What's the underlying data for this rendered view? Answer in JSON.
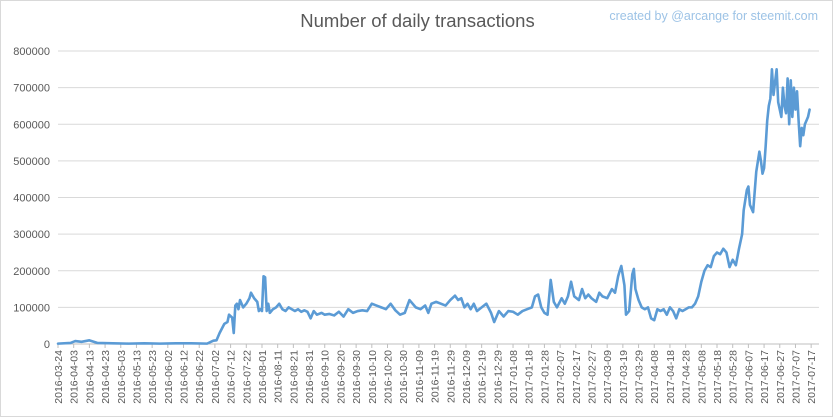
{
  "watermark": "created by @arcange for steemit.com",
  "chart_data": {
    "type": "line",
    "title": "Number of daily transactions",
    "xlabel": "",
    "ylabel": "",
    "x_start": "2016-03-24",
    "x_end": "2017-07-22",
    "x_tick_step_days": 10,
    "ylim": [
      0,
      800000
    ],
    "ytick_step": 100000,
    "y_tick_labels": [
      "0",
      "100000",
      "200000",
      "300000",
      "400000",
      "500000",
      "600000",
      "700000",
      "800000"
    ],
    "x_tick_labels": [
      "2016-03-24",
      "2016-04-03",
      "2016-04-13",
      "2016-04-23",
      "2016-05-03",
      "2016-05-13",
      "2016-05-23",
      "2016-06-02",
      "2016-06-12",
      "2016-06-22",
      "2016-07-02",
      "2016-07-12",
      "2016-07-22",
      "2016-08-01",
      "2016-08-11",
      "2016-08-21",
      "2016-08-31",
      "2016-09-10",
      "2016-09-20",
      "2016-09-30",
      "2016-10-10",
      "2016-10-20",
      "2016-10-30",
      "2016-11-09",
      "2016-11-19",
      "2016-11-29",
      "2016-12-09",
      "2016-12-19",
      "2016-12-29",
      "2017-01-08",
      "2017-01-18",
      "2017-01-28",
      "2017-02-07",
      "2017-02-17",
      "2017-02-27",
      "2017-03-09",
      "2017-03-19",
      "2017-03-29",
      "2017-04-08",
      "2017-04-18",
      "2017-04-28",
      "2017-05-08",
      "2017-05-18",
      "2017-05-28",
      "2017-06-07",
      "2017-06-17",
      "2017-06-27",
      "2017-07-07",
      "2017-07-17"
    ],
    "grid": "horizontal",
    "legend": "none",
    "line_color": "#5b9bd5",
    "series": [
      {
        "points": [
          [
            "2016-03-24",
            1000
          ],
          [
            "2016-04-01",
            3000
          ],
          [
            "2016-04-04",
            8000
          ],
          [
            "2016-04-08",
            6000
          ],
          [
            "2016-04-13",
            10000
          ],
          [
            "2016-04-18",
            3000
          ],
          [
            "2016-04-28",
            2000
          ],
          [
            "2016-05-08",
            1000
          ],
          [
            "2016-05-18",
            2000
          ],
          [
            "2016-05-28",
            1000
          ],
          [
            "2016-06-07",
            2000
          ],
          [
            "2016-06-17",
            2000
          ],
          [
            "2016-06-27",
            1000
          ],
          [
            "2016-07-01",
            9000
          ],
          [
            "2016-07-03",
            10000
          ],
          [
            "2016-07-05",
            30000
          ],
          [
            "2016-07-08",
            55000
          ],
          [
            "2016-07-10",
            60000
          ],
          [
            "2016-07-11",
            80000
          ],
          [
            "2016-07-13",
            72000
          ],
          [
            "2016-07-14",
            30000
          ],
          [
            "2016-07-15",
            105000
          ],
          [
            "2016-07-16",
            110000
          ],
          [
            "2016-07-17",
            95000
          ],
          [
            "2016-07-18",
            120000
          ],
          [
            "2016-07-20",
            100000
          ],
          [
            "2016-07-22",
            110000
          ],
          [
            "2016-07-24",
            125000
          ],
          [
            "2016-07-25",
            140000
          ],
          [
            "2016-07-27",
            125000
          ],
          [
            "2016-07-29",
            115000
          ],
          [
            "2016-07-30",
            90000
          ],
          [
            "2016-07-31",
            95000
          ],
          [
            "2016-08-01",
            90000
          ],
          [
            "2016-08-02",
            185000
          ],
          [
            "2016-08-03",
            182000
          ],
          [
            "2016-08-04",
            90000
          ],
          [
            "2016-08-05",
            110000
          ],
          [
            "2016-08-06",
            85000
          ],
          [
            "2016-08-08",
            95000
          ],
          [
            "2016-08-10",
            100000
          ],
          [
            "2016-08-12",
            110000
          ],
          [
            "2016-08-14",
            95000
          ],
          [
            "2016-08-16",
            90000
          ],
          [
            "2016-08-18",
            100000
          ],
          [
            "2016-08-20",
            95000
          ],
          [
            "2016-08-22",
            90000
          ],
          [
            "2016-08-24",
            95000
          ],
          [
            "2016-08-26",
            88000
          ],
          [
            "2016-08-28",
            92000
          ],
          [
            "2016-08-30",
            88000
          ],
          [
            "2016-09-01",
            70000
          ],
          [
            "2016-09-03",
            90000
          ],
          [
            "2016-09-05",
            80000
          ],
          [
            "2016-09-08",
            85000
          ],
          [
            "2016-09-10",
            80000
          ],
          [
            "2016-09-13",
            82000
          ],
          [
            "2016-09-16",
            78000
          ],
          [
            "2016-09-19",
            88000
          ],
          [
            "2016-09-22",
            75000
          ],
          [
            "2016-09-25",
            95000
          ],
          [
            "2016-09-28",
            85000
          ],
          [
            "2016-10-01",
            90000
          ],
          [
            "2016-10-04",
            92000
          ],
          [
            "2016-10-07",
            90000
          ],
          [
            "2016-10-10",
            110000
          ],
          [
            "2016-10-13",
            105000
          ],
          [
            "2016-10-16",
            100000
          ],
          [
            "2016-10-19",
            95000
          ],
          [
            "2016-10-22",
            110000
          ],
          [
            "2016-10-25",
            92000
          ],
          [
            "2016-10-28",
            80000
          ],
          [
            "2016-10-31",
            85000
          ],
          [
            "2016-11-03",
            120000
          ],
          [
            "2016-11-05",
            110000
          ],
          [
            "2016-11-07",
            100000
          ],
          [
            "2016-11-10",
            95000
          ],
          [
            "2016-11-13",
            105000
          ],
          [
            "2016-11-15",
            85000
          ],
          [
            "2016-11-17",
            110000
          ],
          [
            "2016-11-20",
            115000
          ],
          [
            "2016-11-23",
            110000
          ],
          [
            "2016-11-26",
            105000
          ],
          [
            "2016-11-29",
            120000
          ],
          [
            "2016-12-02",
            132000
          ],
          [
            "2016-12-04",
            120000
          ],
          [
            "2016-12-06",
            125000
          ],
          [
            "2016-12-08",
            100000
          ],
          [
            "2016-12-10",
            110000
          ],
          [
            "2016-12-12",
            95000
          ],
          [
            "2016-12-14",
            110000
          ],
          [
            "2016-12-16",
            90000
          ],
          [
            "2016-12-19",
            100000
          ],
          [
            "2016-12-22",
            110000
          ],
          [
            "2016-12-25",
            85000
          ],
          [
            "2016-12-27",
            60000
          ],
          [
            "2016-12-30",
            90000
          ],
          [
            "2017-01-02",
            75000
          ],
          [
            "2017-01-05",
            90000
          ],
          [
            "2017-01-08",
            88000
          ],
          [
            "2017-01-11",
            80000
          ],
          [
            "2017-01-14",
            90000
          ],
          [
            "2017-01-17",
            95000
          ],
          [
            "2017-01-20",
            100000
          ],
          [
            "2017-01-22",
            130000
          ],
          [
            "2017-01-24",
            135000
          ],
          [
            "2017-01-26",
            100000
          ],
          [
            "2017-01-28",
            85000
          ],
          [
            "2017-01-30",
            80000
          ],
          [
            "2017-02-01",
            175000
          ],
          [
            "2017-02-03",
            115000
          ],
          [
            "2017-02-05",
            100000
          ],
          [
            "2017-02-08",
            125000
          ],
          [
            "2017-02-10",
            110000
          ],
          [
            "2017-02-12",
            130000
          ],
          [
            "2017-02-14",
            170000
          ],
          [
            "2017-02-16",
            130000
          ],
          [
            "2017-02-19",
            120000
          ],
          [
            "2017-02-21",
            150000
          ],
          [
            "2017-02-23",
            125000
          ],
          [
            "2017-02-25",
            135000
          ],
          [
            "2017-02-27",
            125000
          ],
          [
            "2017-03-02",
            115000
          ],
          [
            "2017-03-04",
            140000
          ],
          [
            "2017-03-06",
            130000
          ],
          [
            "2017-03-09",
            125000
          ],
          [
            "2017-03-12",
            150000
          ],
          [
            "2017-03-14",
            140000
          ],
          [
            "2017-03-16",
            185000
          ],
          [
            "2017-03-17",
            200000
          ],
          [
            "2017-03-18",
            213000
          ],
          [
            "2017-03-20",
            160000
          ],
          [
            "2017-03-21",
            80000
          ],
          [
            "2017-03-23",
            90000
          ],
          [
            "2017-03-25",
            190000
          ],
          [
            "2017-03-26",
            205000
          ],
          [
            "2017-03-27",
            150000
          ],
          [
            "2017-03-29",
            120000
          ],
          [
            "2017-03-31",
            100000
          ],
          [
            "2017-04-02",
            95000
          ],
          [
            "2017-04-04",
            100000
          ],
          [
            "2017-04-06",
            70000
          ],
          [
            "2017-04-08",
            65000
          ],
          [
            "2017-04-10",
            95000
          ],
          [
            "2017-04-12",
            90000
          ],
          [
            "2017-04-14",
            95000
          ],
          [
            "2017-04-16",
            80000
          ],
          [
            "2017-04-18",
            100000
          ],
          [
            "2017-04-20",
            90000
          ],
          [
            "2017-04-22",
            70000
          ],
          [
            "2017-04-24",
            95000
          ],
          [
            "2017-04-26",
            90000
          ],
          [
            "2017-04-28",
            95000
          ],
          [
            "2017-04-30",
            100000
          ],
          [
            "2017-05-02",
            100000
          ],
          [
            "2017-05-04",
            110000
          ],
          [
            "2017-05-06",
            130000
          ],
          [
            "2017-05-08",
            170000
          ],
          [
            "2017-05-10",
            200000
          ],
          [
            "2017-05-12",
            215000
          ],
          [
            "2017-05-14",
            210000
          ],
          [
            "2017-05-16",
            240000
          ],
          [
            "2017-05-18",
            250000
          ],
          [
            "2017-05-20",
            245000
          ],
          [
            "2017-05-22",
            260000
          ],
          [
            "2017-05-24",
            250000
          ],
          [
            "2017-05-26",
            210000
          ],
          [
            "2017-05-28",
            230000
          ],
          [
            "2017-05-30",
            215000
          ],
          [
            "2017-06-01",
            260000
          ],
          [
            "2017-06-03",
            300000
          ],
          [
            "2017-06-04",
            365000
          ],
          [
            "2017-06-06",
            420000
          ],
          [
            "2017-06-07",
            430000
          ],
          [
            "2017-06-08",
            380000
          ],
          [
            "2017-06-10",
            360000
          ],
          [
            "2017-06-12",
            470000
          ],
          [
            "2017-06-14",
            525000
          ],
          [
            "2017-06-15",
            500000
          ],
          [
            "2017-06-16",
            465000
          ],
          [
            "2017-06-17",
            480000
          ],
          [
            "2017-06-18",
            540000
          ],
          [
            "2017-06-19",
            610000
          ],
          [
            "2017-06-20",
            650000
          ],
          [
            "2017-06-21",
            670000
          ],
          [
            "2017-06-22",
            750000
          ],
          [
            "2017-06-23",
            680000
          ],
          [
            "2017-06-24",
            715000
          ],
          [
            "2017-06-25",
            750000
          ],
          [
            "2017-06-26",
            660000
          ],
          [
            "2017-06-27",
            640000
          ],
          [
            "2017-06-28",
            620000
          ],
          [
            "2017-06-29",
            700000
          ],
          [
            "2017-06-30",
            650000
          ],
          [
            "2017-07-01",
            630000
          ],
          [
            "2017-07-02",
            725000
          ],
          [
            "2017-07-03",
            600000
          ],
          [
            "2017-07-04",
            720000
          ],
          [
            "2017-07-05",
            620000
          ],
          [
            "2017-07-06",
            700000
          ],
          [
            "2017-07-07",
            640000
          ],
          [
            "2017-07-08",
            690000
          ],
          [
            "2017-07-09",
            610000
          ],
          [
            "2017-07-10",
            540000
          ],
          [
            "2017-07-11",
            590000
          ],
          [
            "2017-07-12",
            570000
          ],
          [
            "2017-07-13",
            600000
          ],
          [
            "2017-07-14",
            610000
          ],
          [
            "2017-07-15",
            620000
          ],
          [
            "2017-07-16",
            640000
          ]
        ]
      }
    ]
  }
}
